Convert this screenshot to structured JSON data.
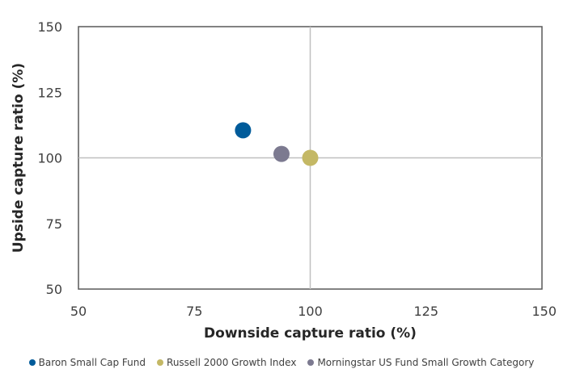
{
  "chart_data": {
    "type": "scatter",
    "title": "",
    "xlabel": "Downside capture ratio  (%)",
    "ylabel": "Upside capture ratio  (%)",
    "xlim": [
      50,
      150
    ],
    "ylim": [
      50,
      150
    ],
    "xticks": [
      50,
      75,
      100,
      125,
      150
    ],
    "yticks": [
      50,
      75,
      100,
      125,
      150
    ],
    "reference_lines": {
      "x": 100,
      "y": 100
    },
    "grid": false,
    "legend_position": "bottom",
    "series": [
      {
        "name": "Baron Small Cap Fund",
        "color": "#005b9a",
        "x": 85.5,
        "y": 110.5
      },
      {
        "name": "Russell 2000 Growth Index",
        "color": "#c4b865",
        "x": 100.0,
        "y": 100.0
      },
      {
        "name": "Morningstar US Fund Small Growth Category",
        "color": "#7c7a90",
        "x": 93.8,
        "y": 101.5
      }
    ]
  }
}
